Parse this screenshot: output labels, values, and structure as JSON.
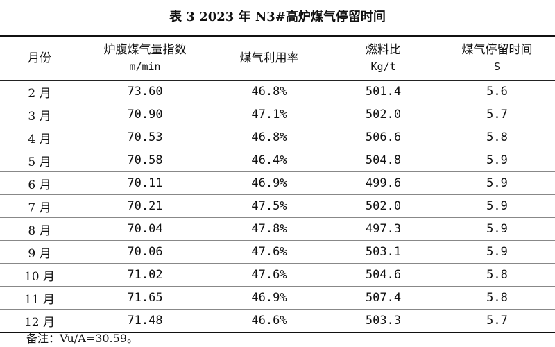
{
  "title": "表 3  2023 年 N3#高炉煤气停留时间",
  "headers": [
    {
      "label": "月份",
      "unit": ""
    },
    {
      "label": "炉腹煤气量指数",
      "unit": "m/min"
    },
    {
      "label": "煤气利用率",
      "unit": ""
    },
    {
      "label": "燃料比",
      "unit": "Kg/t"
    },
    {
      "label": "煤气停留时间",
      "unit": "S"
    }
  ],
  "rows": [
    [
      "2 月",
      "73.60",
      "46.8%",
      "501.4",
      "5.6"
    ],
    [
      "3 月",
      "70.90",
      "47.1%",
      "502.0",
      "5.7"
    ],
    [
      "4 月",
      "70.53",
      "46.8%",
      "506.6",
      "5.8"
    ],
    [
      "5 月",
      "70.58",
      "46.4%",
      "504.8",
      "5.9"
    ],
    [
      "6 月",
      "70.11",
      "46.9%",
      "499.6",
      "5.9"
    ],
    [
      "7 月",
      "70.21",
      "47.5%",
      "502.0",
      "5.9"
    ],
    [
      "8 月",
      "70.04",
      "47.8%",
      "497.3",
      "5.9"
    ],
    [
      "9 月",
      "70.06",
      "47.6%",
      "503.1",
      "5.9"
    ],
    [
      "10 月",
      "71.02",
      "47.6%",
      "504.6",
      "5.8"
    ],
    [
      "11 月",
      "71.65",
      "46.9%",
      "507.4",
      "5.8"
    ],
    [
      "12 月",
      "71.48",
      "46.6%",
      "503.3",
      "5.7"
    ]
  ],
  "note": "备注：Vu/A=30.59。"
}
